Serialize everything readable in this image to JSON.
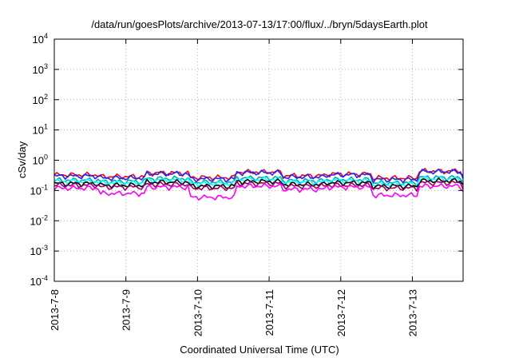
{
  "chart_data": {
    "type": "line",
    "title": "/data/run/goesPlots/archive/2013-07-13/17:00/flux/../bryn/5daysEarth.plot",
    "xlabel": "Coordinated Universal Time (UTC)",
    "ylabel": "cSv/day",
    "yscale": "log",
    "ylim": [
      0.0001,
      10000
    ],
    "xlim": [
      "2013-07-08",
      "2013-07-13 17:00"
    ],
    "x_ticks": [
      "2013-7-8",
      "2013-7-9",
      "2013-7-10",
      "2013-7-11",
      "2013-7-12",
      "2013-7-13"
    ],
    "y_ticks": [
      {
        "base": "10",
        "exp": "-4"
      },
      {
        "base": "10",
        "exp": "-3"
      },
      {
        "base": "10",
        "exp": "-2"
      },
      {
        "base": "10",
        "exp": "-1"
      },
      {
        "base": "10",
        "exp": "0"
      },
      {
        "base": "10",
        "exp": "1"
      },
      {
        "base": "10",
        "exp": "2"
      },
      {
        "base": "10",
        "exp": "3"
      },
      {
        "base": "10",
        "exp": "4"
      }
    ],
    "grid": true,
    "series": [
      {
        "color": "#ff0000",
        "level": 0.3,
        "values": [
          0.33,
          0.29,
          0.38,
          0.27,
          0.41,
          0.31,
          0.35,
          0.26,
          0.44,
          0.3
        ]
      },
      {
        "color": "#2222ff",
        "level": 0.27,
        "values": [
          0.3,
          0.26,
          0.36,
          0.24,
          0.39,
          0.28,
          0.33,
          0.23,
          0.42,
          0.27
        ]
      },
      {
        "color": "#00aaaa",
        "level": 0.21,
        "values": [
          0.22,
          0.2,
          0.25,
          0.19,
          0.26,
          0.21,
          0.23,
          0.18,
          0.27,
          0.21
        ]
      },
      {
        "color": "#00ffff",
        "level": 0.19,
        "values": [
          0.2,
          0.18,
          0.22,
          0.17,
          0.23,
          0.19,
          0.21,
          0.16,
          0.24,
          0.19
        ]
      },
      {
        "color": "#000000",
        "level": 0.16,
        "values": [
          0.17,
          0.15,
          0.19,
          0.14,
          0.2,
          0.16,
          0.18,
          0.14,
          0.21,
          0.16
        ]
      },
      {
        "color": "#990066",
        "level": 0.14,
        "values": [
          0.15,
          0.13,
          0.16,
          0.12,
          0.17,
          0.14,
          0.15,
          0.12,
          0.18,
          0.14
        ]
      },
      {
        "color": "#ff00ff",
        "level": 0.12,
        "values": [
          0.12,
          0.08,
          0.13,
          0.06,
          0.14,
          0.11,
          0.13,
          0.07,
          0.14,
          0.1
        ]
      }
    ]
  }
}
